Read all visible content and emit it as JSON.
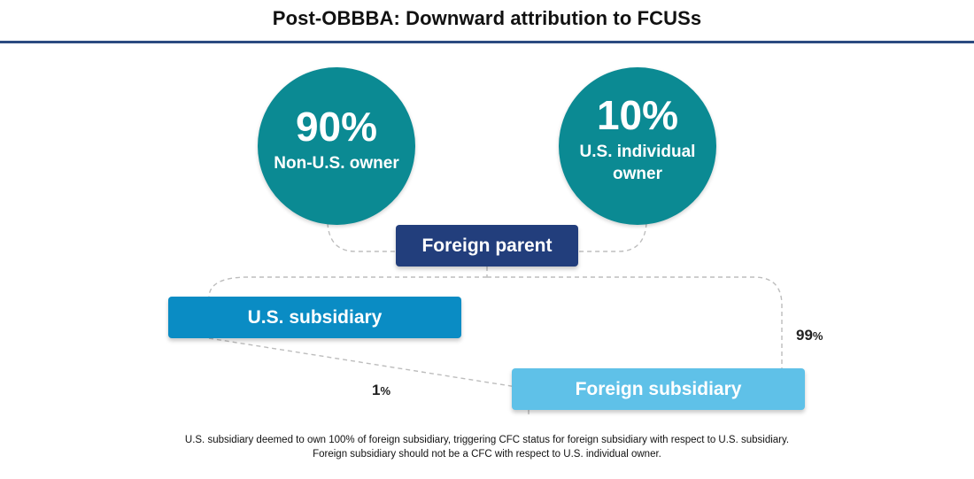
{
  "title": "Post-OBBBA: Downward attribution to FCUSs",
  "owners": [
    {
      "percent": "90%",
      "label": "Non-U.S. owner",
      "color": "#0b8a93"
    },
    {
      "percent": "10%",
      "label": "U.S. individual owner",
      "color": "#0b8a93"
    }
  ],
  "entities": {
    "foreign_parent": {
      "label": "Foreign parent",
      "color": "#223e7c"
    },
    "us_subsidiary": {
      "label": "U.S. subsidiary",
      "color": "#0a8cc4"
    },
    "foreign_subsidiary": {
      "label": "Foreign subsidiary",
      "color": "#5fc1e8"
    }
  },
  "ownership_labels": {
    "parent_to_foreign_sub": {
      "number": "99",
      "unit": "%"
    },
    "us_sub_to_foreign_sub": {
      "number": "1",
      "unit": "%"
    }
  },
  "footnote": {
    "line1": "U.S. subsidiary deemed to own 100% of foreign subsidiary, triggering CFC status for foreign subsidiary with respect to U.S. subsidiary.",
    "line2": "Foreign subsidiary should not be a CFC with respect to U.S. individual owner."
  },
  "colors": {
    "title_rule": "#2b4b80",
    "connector": "#bdbdbd"
  }
}
